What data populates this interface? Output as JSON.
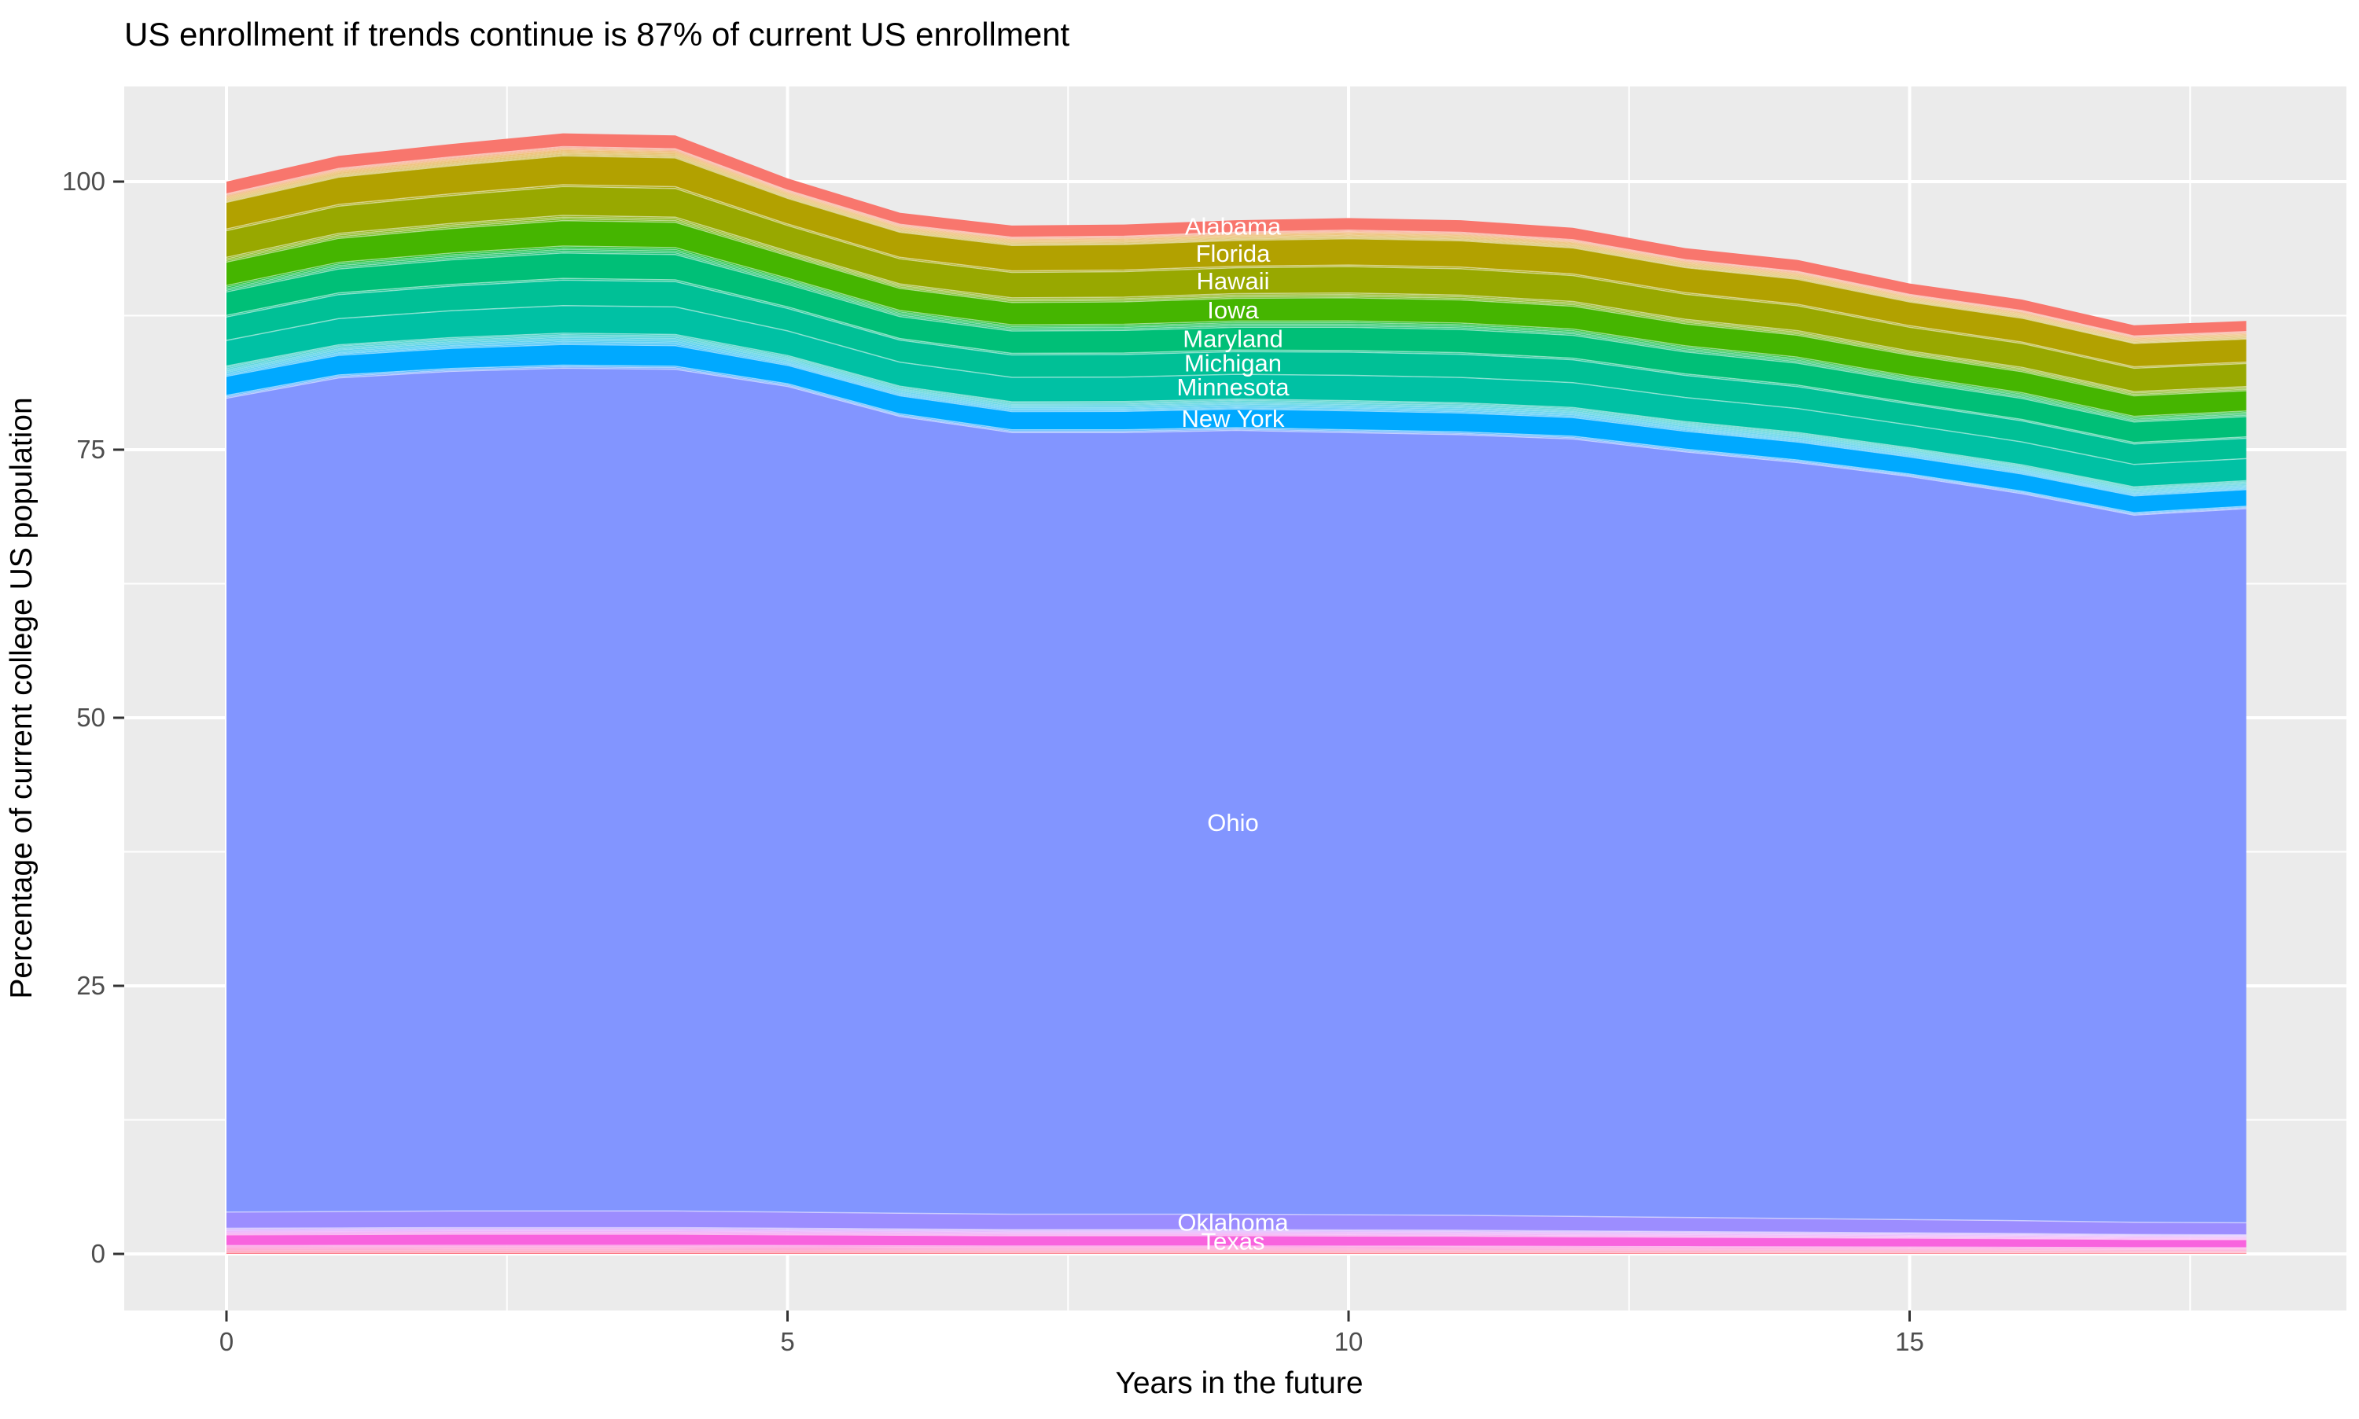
{
  "page": {
    "background": "#FFFFFF"
  },
  "chart_data": {
    "type": "area",
    "variant": "stacked-area",
    "title": "US enrollment if trends continue is 87% of current US enrollment",
    "xlabel": "Years in the future",
    "ylabel": "Percentage of current college US population",
    "legend": "none",
    "grid": true,
    "panel_bg": "#EBEBEB",
    "grid_color": "#FFFFFF",
    "tick_label_color": "#4D4D4D",
    "tick_mark_color": "#333333",
    "band_label_color": "#FFFFFF",
    "x": [
      0,
      1,
      2,
      3,
      4,
      5,
      6,
      7,
      8,
      9,
      10,
      11,
      12,
      13,
      14,
      15,
      16,
      17,
      18
    ],
    "xlim": [
      -0.9,
      18.9
    ],
    "ylim": [
      -5.3,
      108.7
    ],
    "x_ticks": [
      0,
      5,
      10,
      15
    ],
    "x_tick_labels": [
      "0",
      "5",
      "10",
      "15"
    ],
    "x_minor_ticks": [
      2.5,
      7.5,
      12.5,
      17.5
    ],
    "y_ticks": [
      0,
      25,
      50,
      75,
      100
    ],
    "y_tick_labels": [
      "0",
      "25",
      "50",
      "75",
      "100"
    ],
    "y_minor_ticks": [
      12.5,
      37.5,
      62.5,
      87.5
    ],
    "stack_total": [
      100.0,
      102.4,
      103.5,
      104.5,
      104.3,
      100.3,
      97.1,
      95.9,
      96.0,
      96.4,
      96.6,
      96.4,
      95.7,
      93.8,
      92.7,
      90.5,
      89.0,
      86.6,
      87.0
    ],
    "ohio_top": [
      79.8,
      81.7,
      82.3,
      82.6,
      82.5,
      80.9,
      78.1,
      76.6,
      76.6,
      76.8,
      76.6,
      76.4,
      76.0,
      74.8,
      73.8,
      72.5,
      70.9,
      68.9,
      69.5
    ],
    "ohio_bottom": [
      3.9,
      3.95,
      4.0,
      4.0,
      4.0,
      3.9,
      3.8,
      3.7,
      3.7,
      3.7,
      3.65,
      3.6,
      3.5,
      3.4,
      3.3,
      3.2,
      3.1,
      2.95,
      2.9
    ],
    "series": [
      {
        "label": "Alabama",
        "labeled": true,
        "weight": 1.15,
        "count": 1
      },
      {
        "label": "",
        "labeled": false,
        "weight": 0.1,
        "count": 8
      },
      {
        "label": "Florida",
        "labeled": true,
        "weight": 2.5,
        "count": 1
      },
      {
        "label": "",
        "labeled": false,
        "weight": 0.15,
        "count": 1
      },
      {
        "label": "Hawaii",
        "labeled": true,
        "weight": 2.5,
        "count": 1
      },
      {
        "label": "",
        "labeled": false,
        "weight": 0.15,
        "count": 3
      },
      {
        "label": "Iowa",
        "labeled": true,
        "weight": 2.2,
        "count": 1
      },
      {
        "label": "",
        "labeled": false,
        "weight": 0.15,
        "count": 4
      },
      {
        "label": "Maryland",
        "labeled": true,
        "weight": 2.2,
        "count": 1
      },
      {
        "label": "",
        "labeled": false,
        "weight": 0.15,
        "count": 1
      },
      {
        "label": "Michigan",
        "labeled": true,
        "weight": 2.2,
        "count": 1
      },
      {
        "label": "Minnesota",
        "labeled": true,
        "weight": 2.4,
        "count": 1
      },
      {
        "label": "",
        "labeled": false,
        "weight": 0.12,
        "count": 8
      },
      {
        "label": "New York",
        "labeled": true,
        "weight": 1.8,
        "count": 1
      },
      {
        "label": "",
        "labeled": false,
        "weight": 0.13,
        "count": 2
      },
      {
        "label": "Ohio",
        "labeled": true,
        "region": "ohio",
        "count": 1
      },
      {
        "label": "Oklahoma",
        "labeled": true,
        "weight": 1.5,
        "count": 1
      },
      {
        "label": "",
        "labeled": false,
        "weight": 0.1,
        "count": 6
      },
      {
        "label": "Texas",
        "labeled": true,
        "weight": 1.0,
        "count": 1
      },
      {
        "label": "",
        "labeled": false,
        "weight": 0.11,
        "count": 7
      }
    ],
    "palette": {
      "model": "hcl",
      "hue_start": 15,
      "hue_span": 360,
      "chroma": 100,
      "luminance": 65,
      "n_layers": 51
    },
    "annotation_final_value": "87"
  }
}
